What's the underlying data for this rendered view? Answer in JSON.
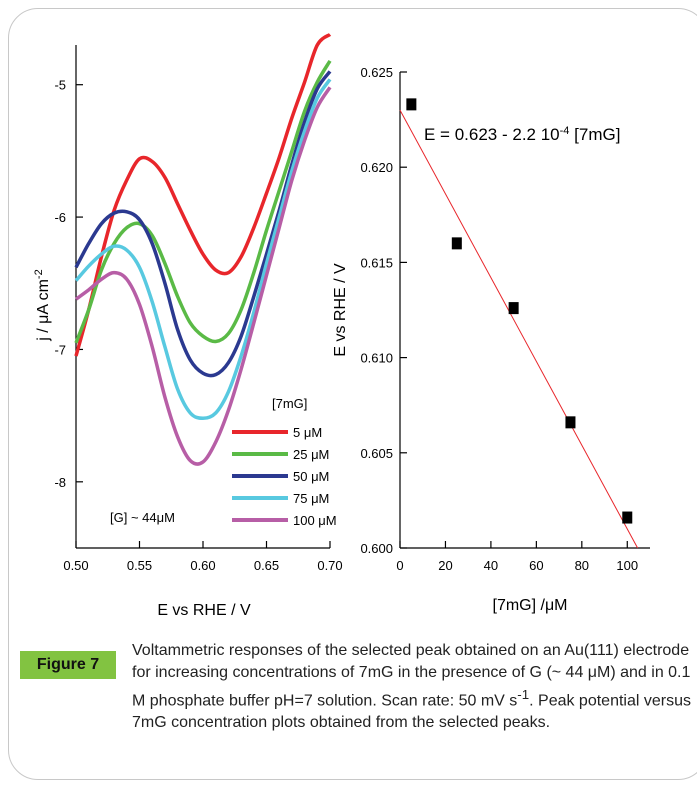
{
  "figure": {
    "badge": "Figure 7",
    "caption": "Voltammetric responses of the selected peak obtained on an Au(111) electrode for increasing concentrations of 7mG in the presence of G (~ 44 μM) and in 0.1 M phosphate buffer pH=7 solution. Scan rate: 50 mV s-1. Peak potential versus 7mG concentration plots obtained from the selected peaks."
  },
  "chart_data": [
    {
      "type": "line",
      "xlabel": "E vs RHE / V",
      "ylabel": "j / μA cm-2",
      "xlim": [
        0.5,
        0.7
      ],
      "ylim": [
        -8.5,
        -4.7
      ],
      "xticks": [
        "0.50",
        "0.55",
        "0.60",
        "0.65",
        "0.70"
      ],
      "yticks": [
        "-5",
        "-6",
        "-7",
        "-8"
      ],
      "legend_title": "[7mG]",
      "annotation": "[G] ~ 44μM",
      "series": [
        {
          "name": "5 μM",
          "color": "#e8262b",
          "x": [
            0.5,
            0.51,
            0.52,
            0.53,
            0.54,
            0.55,
            0.56,
            0.57,
            0.58,
            0.59,
            0.6,
            0.61,
            0.62,
            0.63,
            0.64,
            0.65,
            0.66,
            0.67,
            0.68,
            0.69,
            0.7
          ],
          "y": [
            -7.05,
            -6.7,
            -6.3,
            -5.95,
            -5.72,
            -5.56,
            -5.58,
            -5.7,
            -5.9,
            -6.1,
            -6.28,
            -6.4,
            -6.42,
            -6.3,
            -6.08,
            -5.82,
            -5.55,
            -5.25,
            -4.98,
            -4.7,
            -4.62
          ]
        },
        {
          "name": "25 μM",
          "color": "#5aba46",
          "x": [
            0.5,
            0.51,
            0.52,
            0.53,
            0.54,
            0.55,
            0.56,
            0.57,
            0.58,
            0.59,
            0.6,
            0.61,
            0.62,
            0.63,
            0.64,
            0.65,
            0.66,
            0.67,
            0.68,
            0.69,
            0.7
          ],
          "y": [
            -6.95,
            -6.7,
            -6.4,
            -6.2,
            -6.08,
            -6.05,
            -6.14,
            -6.35,
            -6.6,
            -6.8,
            -6.9,
            -6.94,
            -6.88,
            -6.7,
            -6.42,
            -6.1,
            -5.8,
            -5.5,
            -5.2,
            -4.98,
            -4.82
          ]
        },
        {
          "name": "50 μM",
          "color": "#2b3990",
          "x": [
            0.5,
            0.51,
            0.52,
            0.53,
            0.54,
            0.55,
            0.56,
            0.57,
            0.58,
            0.59,
            0.6,
            0.61,
            0.62,
            0.63,
            0.64,
            0.65,
            0.66,
            0.67,
            0.68,
            0.69,
            0.7
          ],
          "y": [
            -6.38,
            -6.2,
            -6.05,
            -5.97,
            -5.96,
            -6.02,
            -6.2,
            -6.5,
            -6.85,
            -7.08,
            -7.18,
            -7.19,
            -7.1,
            -6.9,
            -6.6,
            -6.28,
            -5.95,
            -5.6,
            -5.28,
            -5.03,
            -4.9
          ]
        },
        {
          "name": "75 μM",
          "color": "#58c9e0",
          "x": [
            0.5,
            0.51,
            0.52,
            0.53,
            0.54,
            0.55,
            0.56,
            0.57,
            0.58,
            0.59,
            0.6,
            0.61,
            0.62,
            0.63,
            0.64,
            0.65,
            0.66,
            0.67,
            0.68,
            0.69,
            0.7
          ],
          "y": [
            -6.48,
            -6.37,
            -6.28,
            -6.22,
            -6.25,
            -6.38,
            -6.64,
            -6.98,
            -7.3,
            -7.48,
            -7.52,
            -7.48,
            -7.32,
            -7.05,
            -6.72,
            -6.35,
            -6.0,
            -5.65,
            -5.35,
            -5.1,
            -4.96
          ]
        },
        {
          "name": "100 μM",
          "color": "#b75ea6",
          "x": [
            0.5,
            0.51,
            0.52,
            0.53,
            0.54,
            0.55,
            0.56,
            0.57,
            0.58,
            0.59,
            0.6,
            0.61,
            0.62,
            0.63,
            0.64,
            0.65,
            0.66,
            0.67,
            0.68,
            0.69,
            0.7
          ],
          "y": [
            -6.62,
            -6.55,
            -6.47,
            -6.42,
            -6.47,
            -6.66,
            -6.98,
            -7.36,
            -7.66,
            -7.84,
            -7.85,
            -7.7,
            -7.46,
            -7.15,
            -6.8,
            -6.44,
            -6.08,
            -5.72,
            -5.42,
            -5.17,
            -5.02
          ]
        }
      ]
    },
    {
      "type": "scatter",
      "xlabel": "[7mG] /μM",
      "ylabel": "E vs RHE / V",
      "xlim": [
        0,
        110
      ],
      "ylim": [
        0.6,
        0.625
      ],
      "xticks": [
        "0",
        "20",
        "40",
        "60",
        "80",
        "100"
      ],
      "yticks": [
        "0.600",
        "0.605",
        "0.610",
        "0.615",
        "0.620",
        "0.625"
      ],
      "points": {
        "x": [
          5,
          25,
          50,
          75,
          100
        ],
        "y": [
          0.6233,
          0.616,
          0.6126,
          0.6066,
          0.6016
        ]
      },
      "fit": {
        "label": "E = 0.623 - 2.2 10-4 [7mG]",
        "intercept": 0.623,
        "slope": -0.00022,
        "color": "#e8262b"
      }
    }
  ]
}
